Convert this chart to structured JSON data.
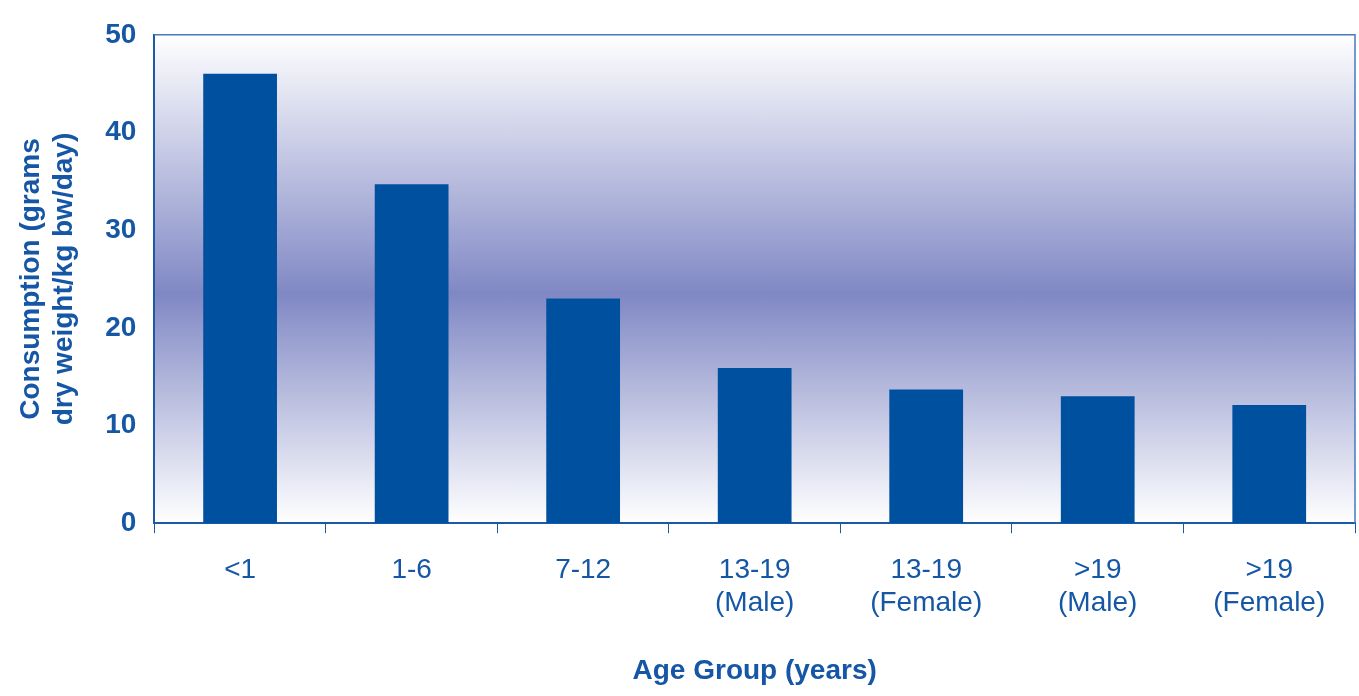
{
  "chart_data": {
    "type": "bar",
    "xlabel": "Age Group (years)",
    "ylabel": "Consumption (grams dry weight/kg bw/day)",
    "categories": [
      "<1",
      "1-6",
      "7-12",
      "13-19 (Male)",
      "13-19 (Female)",
      ">19 (Male)",
      ">19 (Female)"
    ],
    "values": [
      46,
      34.7,
      23,
      15.9,
      13.7,
      13,
      12.1
    ],
    "color": "#0050a0",
    "ylim": [
      0,
      50
    ],
    "yticks": [
      0,
      10,
      20,
      30,
      40,
      50
    ],
    "legend": false
  }
}
